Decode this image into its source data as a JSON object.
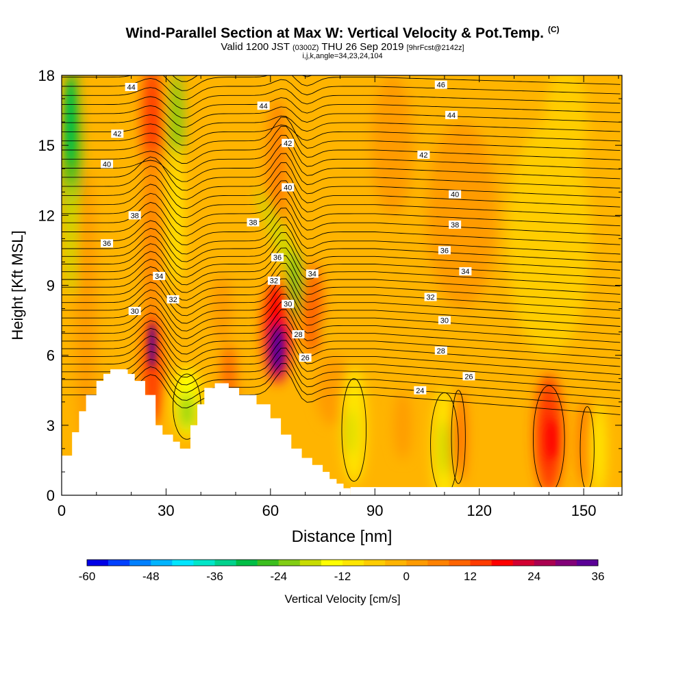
{
  "header": {
    "title": "Wind-Parallel Section at Max W: Vertical Velocity & Pot.Temp.",
    "copyright": "(C)",
    "valid_prefix": "Valid 1200 JST",
    "valid_utc": "(0300Z)",
    "valid_date": "THU 26 Sep 2019",
    "forecast": "[9hrFcst@2142z]",
    "indices": "i,j,k,angle=34,23,24,104"
  },
  "chart_data": {
    "type": "heatmap",
    "title": "Wind-Parallel Section at Max W: Vertical Velocity & Pot.Temp.",
    "xlabel": "Distance [nm]",
    "ylabel": "Height [Kft MSL]",
    "xlim": [
      0,
      161
    ],
    "ylim": [
      0,
      18
    ],
    "x_ticks": [
      0,
      30,
      60,
      90,
      120,
      150
    ],
    "y_ticks": [
      0,
      3,
      6,
      9,
      12,
      15,
      18
    ],
    "colorbar": {
      "label": "Vertical Velocity [cm/s]",
      "ticks": [
        -60,
        -48,
        -36,
        -24,
        -12,
        0,
        12,
        24,
        36
      ],
      "min": -60,
      "max": 36,
      "colors": [
        "#0000e6",
        "#0040ff",
        "#0080ff",
        "#00b4ff",
        "#00e6ff",
        "#00e6c8",
        "#00d28c",
        "#00be46",
        "#3cbe1e",
        "#82cd14",
        "#c8dc00",
        "#ffff00",
        "#ffe600",
        "#ffcd00",
        "#ffb400",
        "#ff9b00",
        "#ff8200",
        "#ff6400",
        "#ff3c00",
        "#ff0000",
        "#d20032",
        "#aa0050",
        "#820078",
        "#5a0096"
      ]
    },
    "contour_labels": [
      {
        "x": 20,
        "y": 17.5,
        "text": "44"
      },
      {
        "x": 16,
        "y": 15.5,
        "text": "42"
      },
      {
        "x": 13,
        "y": 14.2,
        "text": "40"
      },
      {
        "x": 21,
        "y": 12.0,
        "text": "38"
      },
      {
        "x": 13,
        "y": 10.8,
        "text": "36"
      },
      {
        "x": 28,
        "y": 9.4,
        "text": "34"
      },
      {
        "x": 32,
        "y": 8.4,
        "text": "32"
      },
      {
        "x": 21,
        "y": 7.9,
        "text": "30"
      },
      {
        "x": 58,
        "y": 16.7,
        "text": "44"
      },
      {
        "x": 65,
        "y": 15.1,
        "text": "42"
      },
      {
        "x": 65,
        "y": 13.2,
        "text": "40"
      },
      {
        "x": 55,
        "y": 11.7,
        "text": "38"
      },
      {
        "x": 62,
        "y": 10.2,
        "text": "36"
      },
      {
        "x": 61,
        "y": 9.2,
        "text": "32"
      },
      {
        "x": 65,
        "y": 8.2,
        "text": "30"
      },
      {
        "x": 72,
        "y": 9.5,
        "text": "34"
      },
      {
        "x": 68,
        "y": 6.9,
        "text": "28"
      },
      {
        "x": 70,
        "y": 5.9,
        "text": "26"
      },
      {
        "x": 109,
        "y": 17.6,
        "text": "46"
      },
      {
        "x": 112,
        "y": 16.3,
        "text": "44"
      },
      {
        "x": 104,
        "y": 14.6,
        "text": "42"
      },
      {
        "x": 113,
        "y": 12.9,
        "text": "40"
      },
      {
        "x": 113,
        "y": 11.6,
        "text": "38"
      },
      {
        "x": 110,
        "y": 10.5,
        "text": "36"
      },
      {
        "x": 116,
        "y": 9.6,
        "text": "34"
      },
      {
        "x": 106,
        "y": 8.5,
        "text": "32"
      },
      {
        "x": 110,
        "y": 7.5,
        "text": "30"
      },
      {
        "x": 109,
        "y": 6.2,
        "text": "28"
      },
      {
        "x": 117,
        "y": 5.1,
        "text": "26"
      },
      {
        "x": 103,
        "y": 4.5,
        "text": "24"
      }
    ]
  }
}
